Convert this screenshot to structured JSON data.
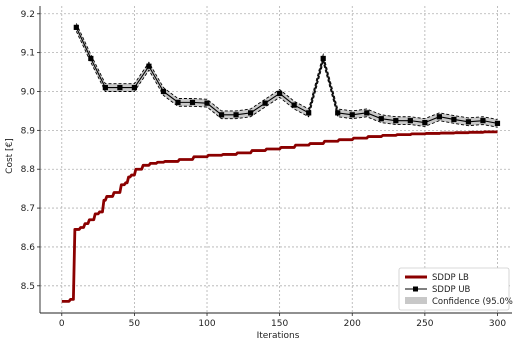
{
  "chart_data": {
    "type": "line",
    "xlabel": "Iterations",
    "ylabel": "Cost [€]",
    "xlim": [
      -15,
      310
    ],
    "ylim": [
      8.43,
      9.22
    ],
    "xticks": [
      0,
      50,
      100,
      150,
      200,
      250,
      300
    ],
    "yticks": [
      8.5,
      8.6,
      8.7,
      8.8,
      8.9,
      9.0,
      9.1,
      9.2
    ],
    "grid": true,
    "legend_position": "bottom-right",
    "colors": {
      "lb": "#8b0000",
      "ub": "#000000",
      "band": "#c8c8c8"
    },
    "series": [
      {
        "name": "SDDP LB",
        "style": "step",
        "x": [
          0,
          5,
          6,
          8,
          9,
          12,
          13,
          15,
          16,
          18,
          19,
          22,
          23,
          25,
          26,
          28,
          29,
          30,
          31,
          35,
          36,
          40,
          41,
          43,
          44,
          45,
          46,
          47,
          48,
          50,
          51,
          55,
          56,
          60,
          61,
          65,
          66,
          70,
          71,
          80,
          81,
          90,
          91,
          100,
          101,
          110,
          111,
          120,
          121,
          130,
          131,
          140,
          141,
          150,
          151,
          160,
          161,
          170,
          171,
          180,
          181,
          190,
          191,
          200,
          201,
          210,
          211,
          220,
          221,
          230,
          231,
          240,
          241,
          250,
          251,
          260,
          261,
          270,
          271,
          280,
          281,
          290,
          291,
          300
        ],
        "y": [
          8.46,
          8.46,
          8.465,
          8.465,
          8.645,
          8.645,
          8.65,
          8.65,
          8.66,
          8.66,
          8.67,
          8.67,
          8.685,
          8.685,
          8.69,
          8.69,
          8.72,
          8.72,
          8.73,
          8.73,
          8.74,
          8.74,
          8.76,
          8.76,
          8.765,
          8.765,
          8.78,
          8.78,
          8.785,
          8.785,
          8.8,
          8.8,
          8.81,
          8.81,
          8.815,
          8.815,
          8.818,
          8.818,
          8.82,
          8.82,
          8.825,
          8.825,
          8.832,
          8.832,
          8.836,
          8.836,
          8.838,
          8.838,
          8.842,
          8.842,
          8.848,
          8.848,
          8.852,
          8.852,
          8.856,
          8.856,
          8.862,
          8.862,
          8.866,
          8.866,
          8.872,
          8.872,
          8.876,
          8.876,
          8.88,
          8.88,
          8.884,
          8.884,
          8.887,
          8.887,
          8.889,
          8.889,
          8.891,
          8.891,
          8.892,
          8.892,
          8.893,
          8.893,
          8.894,
          8.894,
          8.895,
          8.895,
          8.896,
          8.896
        ]
      },
      {
        "name": "SDDP UB",
        "style": "markers",
        "x": [
          10,
          20,
          30,
          40,
          50,
          60,
          70,
          80,
          90,
          100,
          110,
          120,
          130,
          140,
          150,
          160,
          170,
          180,
          190,
          200,
          210,
          220,
          230,
          240,
          250,
          260,
          270,
          280,
          290,
          300
        ],
        "y": [
          9.165,
          9.085,
          9.01,
          9.01,
          9.01,
          9.065,
          9.0,
          8.972,
          8.972,
          8.97,
          8.94,
          8.94,
          8.945,
          8.97,
          8.995,
          8.965,
          8.945,
          9.085,
          8.945,
          8.94,
          8.945,
          8.93,
          8.925,
          8.925,
          8.92,
          8.935,
          8.928,
          8.922,
          8.925,
          8.918
        ],
        "band_halfwidth": 0.01
      },
      {
        "name": "Confidence (95.0%)",
        "style": "band"
      }
    ]
  }
}
